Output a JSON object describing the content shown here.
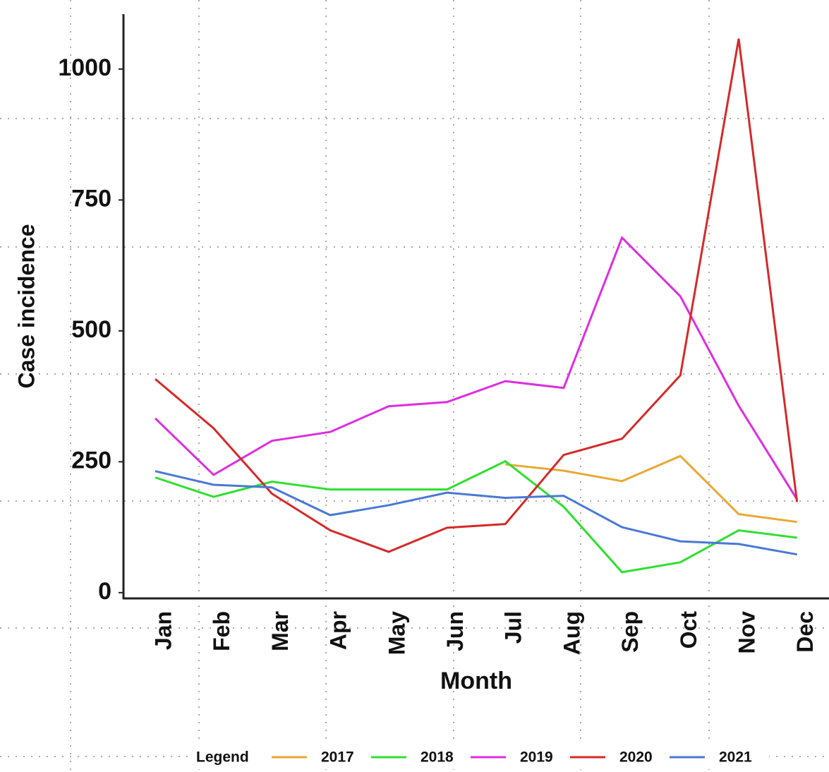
{
  "chart_data": {
    "type": "line",
    "x_label": "Month",
    "y_label": "Case incidence",
    "legend_title": "Legend",
    "legend_position": "bottom",
    "categories": [
      "Jan",
      "Feb",
      "Mar",
      "Apr",
      "May",
      "Jun",
      "Jul",
      "Aug",
      "Sep",
      "Oct",
      "Nov",
      "Dec"
    ],
    "series": [
      {
        "name": "2017",
        "color": "#e8a935",
        "values": [
          null,
          null,
          null,
          null,
          null,
          null,
          245,
          233,
          213,
          261,
          150,
          135
        ]
      },
      {
        "name": "2018",
        "color": "#2ee02e",
        "values": [
          220,
          183,
          212,
          197,
          197,
          197,
          251,
          164,
          39,
          58,
          119,
          105
        ]
      },
      {
        "name": "2019",
        "color": "#dd2ee0",
        "values": [
          333,
          225,
          290,
          307,
          356,
          364,
          404,
          391,
          678,
          566,
          357,
          178
        ]
      },
      {
        "name": "2020",
        "color": "#d42a2a",
        "values": [
          408,
          314,
          189,
          119,
          78,
          124,
          131,
          263,
          294,
          415,
          1058,
          173
        ]
      },
      {
        "name": "2021",
        "color": "#4a78d4",
        "values": [
          232,
          206,
          201,
          148,
          167,
          191,
          181,
          185,
          125,
          98,
          93,
          73
        ]
      }
    ],
    "ylim": [
      -11,
      1105
    ],
    "yticks": [
      0,
      250,
      500,
      750,
      1000
    ]
  }
}
